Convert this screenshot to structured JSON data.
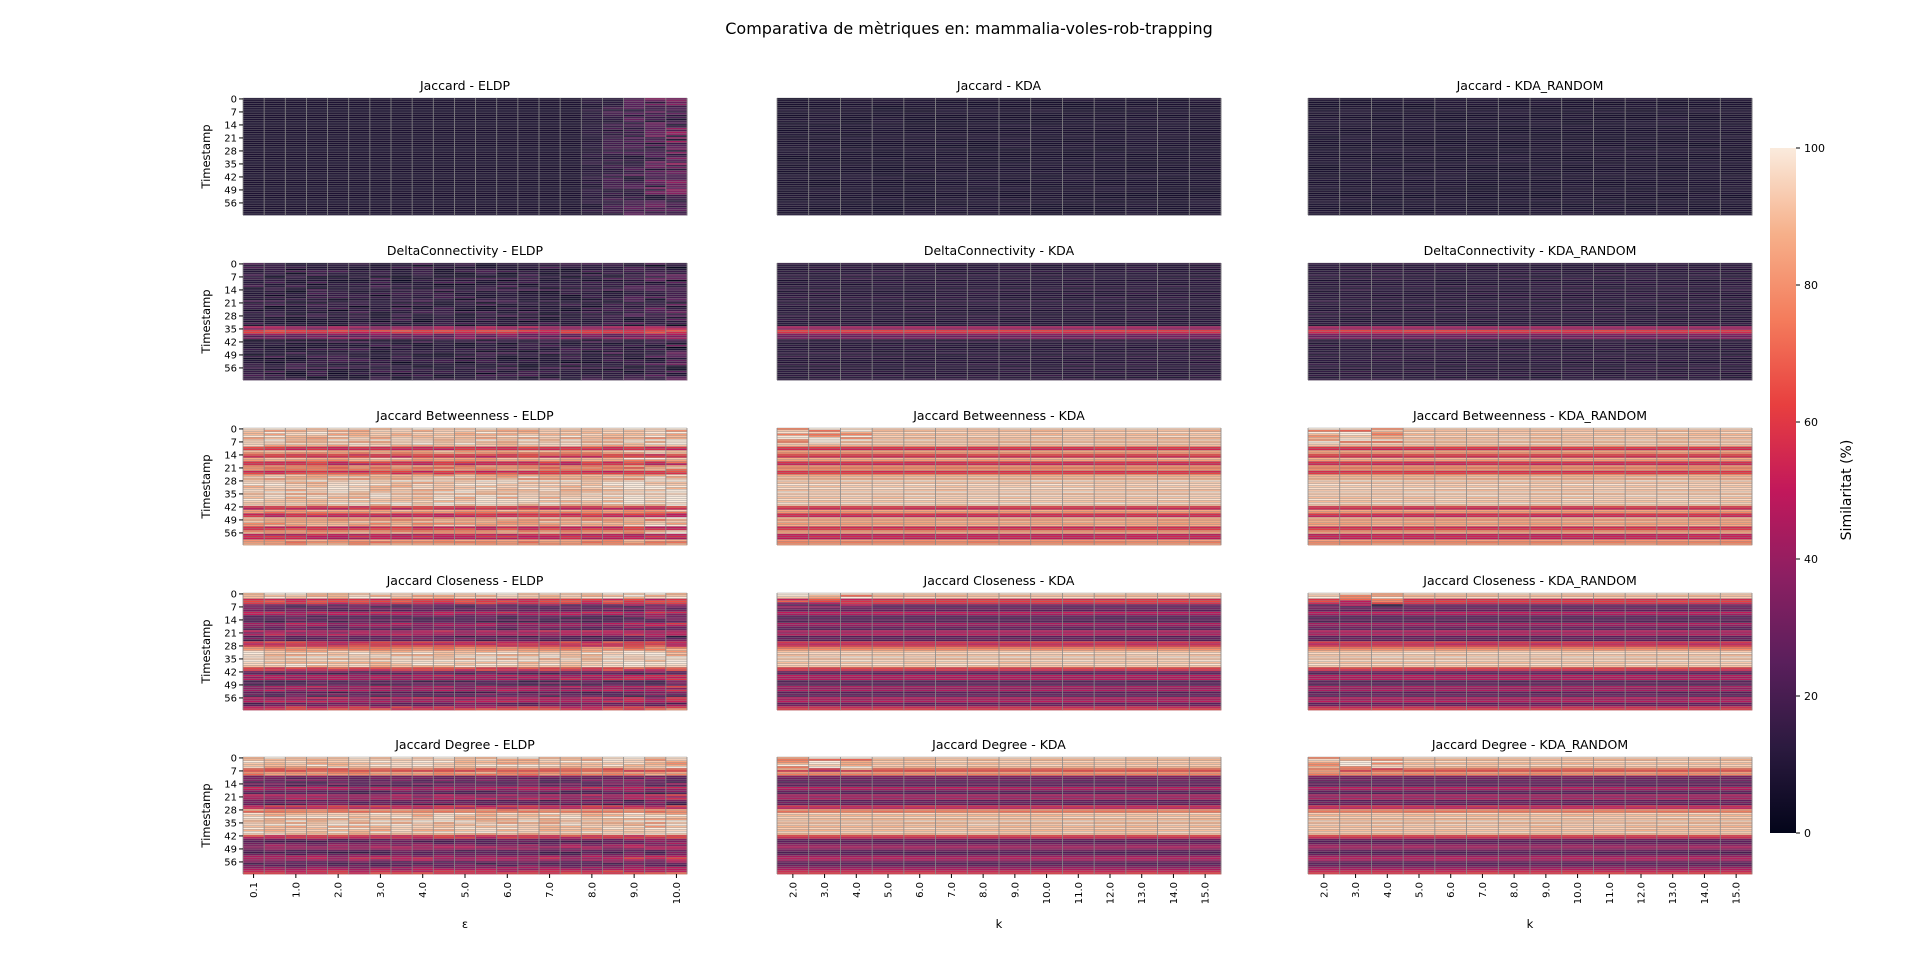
{
  "chart_data": {
    "type": "heatmap",
    "title": "Comparativa de mètriques en: mammalia-voles-rob-trapping",
    "ylabel": "Timestamp",
    "y_tick_labels": [
      "0",
      "7",
      "14",
      "21",
      "28",
      "35",
      "42",
      "49",
      "56"
    ],
    "n_timestamps": 63,
    "colorbar": {
      "label": "Similaritat (%)",
      "ticks": [
        "0",
        "20",
        "40",
        "60",
        "80",
        "100"
      ],
      "range": [
        0,
        100
      ],
      "stops": [
        "#03051a",
        "#2b1a3f",
        "#5a1f5c",
        "#8c1f62",
        "#c2185b",
        "#e83f3f",
        "#f47c5c",
        "#f6b08a",
        "#faebdd"
      ]
    },
    "columns": [
      {
        "xlabel": "ε",
        "x_tick_labels": [
          "0.1",
          "1.0",
          "2.0",
          "3.0",
          "4.0",
          "5.0",
          "6.0",
          "7.0",
          "8.0",
          "9.0",
          "10.0"
        ],
        "n_cells": 21
      },
      {
        "xlabel": "k",
        "x_tick_labels": [
          "2.0",
          "3.0",
          "4.0",
          "5.0",
          "6.0",
          "7.0",
          "8.0",
          "9.0",
          "10.0",
          "11.0",
          "12.0",
          "13.0",
          "14.0",
          "15.0"
        ],
        "n_cells": 14
      },
      {
        "xlabel": "k",
        "x_tick_labels": [
          "2.0",
          "3.0",
          "4.0",
          "5.0",
          "6.0",
          "7.0",
          "8.0",
          "9.0",
          "10.0",
          "11.0",
          "12.0",
          "13.0",
          "14.0",
          "15.0"
        ],
        "n_cells": 14
      }
    ],
    "rows": [
      {
        "metric": "Jaccard",
        "titles": [
          "Jaccard - ELDP",
          "Jaccard - KDA",
          "Jaccard - KDA_RANDOM"
        ],
        "bands": [
          [
            0,
            63,
            8
          ]
        ]
      },
      {
        "metric": "DeltaConnectivity",
        "titles": [
          "DeltaConnectivity - ELDP",
          "DeltaConnectivity - KDA",
          "DeltaConnectivity - KDA_RANDOM"
        ],
        "bands": [
          [
            0,
            34,
            15
          ],
          [
            34,
            36,
            45
          ],
          [
            36,
            38,
            62
          ],
          [
            38,
            41,
            35
          ],
          [
            41,
            63,
            15
          ]
        ]
      },
      {
        "metric": "Jaccard Betweenness",
        "titles": [
          "Jaccard Betweenness - ELDP",
          "Jaccard Betweenness - KDA",
          "Jaccard Betweenness - KDA_RANDOM"
        ],
        "bands": [
          [
            0,
            10,
            95
          ],
          [
            10,
            12,
            60
          ],
          [
            12,
            14,
            85
          ],
          [
            14,
            16,
            62
          ],
          [
            16,
            18,
            88
          ],
          [
            18,
            20,
            58
          ],
          [
            20,
            23,
            80
          ],
          [
            23,
            25,
            62
          ],
          [
            25,
            28,
            92
          ],
          [
            28,
            42,
            97
          ],
          [
            42,
            44,
            60
          ],
          [
            44,
            46,
            85
          ],
          [
            46,
            48,
            58
          ],
          [
            48,
            53,
            88
          ],
          [
            53,
            55,
            60
          ],
          [
            55,
            57,
            85
          ],
          [
            57,
            60,
            55
          ],
          [
            60,
            63,
            82
          ]
        ]
      },
      {
        "metric": "Jaccard Closeness",
        "titles": [
          "Jaccard Closeness - ELDP",
          "Jaccard Closeness - KDA",
          "Jaccard Closeness - KDA_RANDOM"
        ],
        "bands": [
          [
            0,
            3,
            95
          ],
          [
            3,
            6,
            62
          ],
          [
            6,
            10,
            32
          ],
          [
            10,
            12,
            50
          ],
          [
            12,
            16,
            28
          ],
          [
            16,
            18,
            45
          ],
          [
            18,
            20,
            30
          ],
          [
            20,
            23,
            48
          ],
          [
            23,
            26,
            30
          ],
          [
            26,
            29,
            58
          ],
          [
            29,
            31,
            80
          ],
          [
            31,
            40,
            97
          ],
          [
            40,
            42,
            62
          ],
          [
            42,
            44,
            30
          ],
          [
            44,
            47,
            48
          ],
          [
            47,
            50,
            28
          ],
          [
            50,
            53,
            45
          ],
          [
            53,
            56,
            30
          ],
          [
            56,
            59,
            48
          ],
          [
            59,
            61,
            32
          ],
          [
            61,
            63,
            60
          ]
        ]
      },
      {
        "metric": "Jaccard Degree",
        "titles": [
          "Jaccard Degree - ELDP",
          "Jaccard Degree - KDA",
          "Jaccard Degree - KDA_RANDOM"
        ],
        "bands": [
          [
            0,
            6,
            95
          ],
          [
            6,
            8,
            70
          ],
          [
            8,
            10,
            82
          ],
          [
            10,
            12,
            35
          ],
          [
            12,
            16,
            30
          ],
          [
            16,
            18,
            48
          ],
          [
            18,
            20,
            28
          ],
          [
            20,
            23,
            45
          ],
          [
            23,
            26,
            32
          ],
          [
            26,
            28,
            55
          ],
          [
            28,
            30,
            80
          ],
          [
            30,
            42,
            95
          ],
          [
            42,
            44,
            60
          ],
          [
            44,
            47,
            30
          ],
          [
            47,
            50,
            45
          ],
          [
            50,
            53,
            28
          ],
          [
            53,
            56,
            48
          ],
          [
            56,
            59,
            30
          ],
          [
            59,
            61,
            45
          ],
          [
            61,
            63,
            60
          ]
        ]
      }
    ]
  }
}
